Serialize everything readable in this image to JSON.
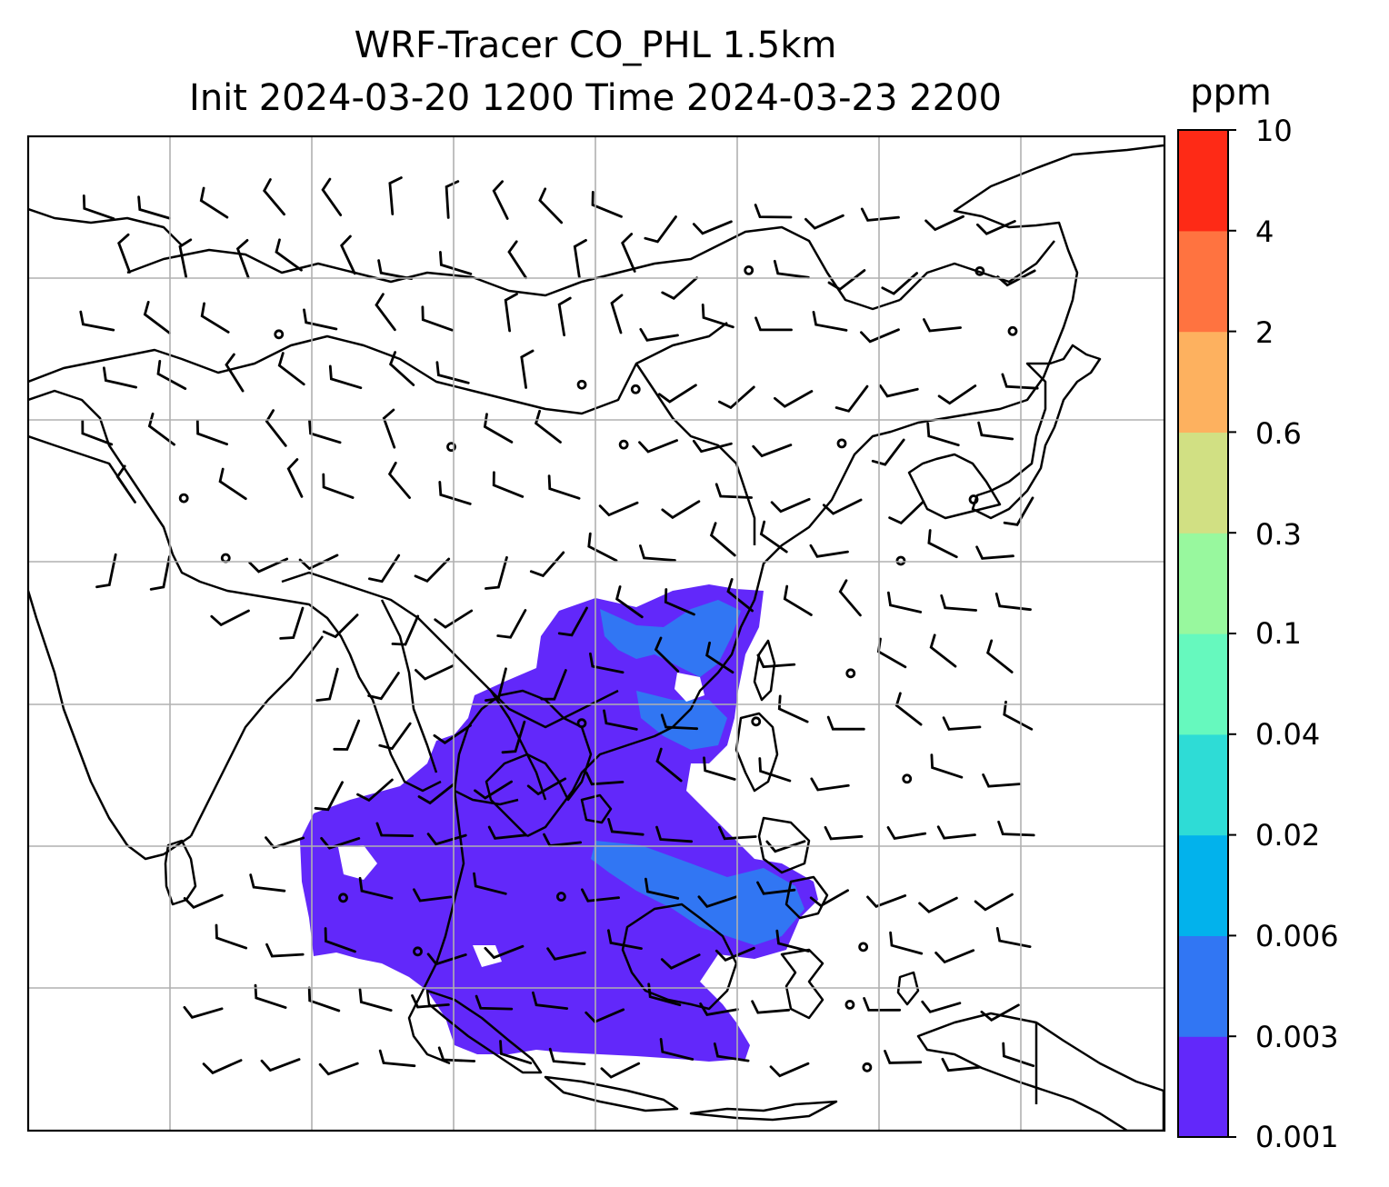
{
  "title": {
    "line1": "WRF-Tracer CO_PHL 1.5km",
    "line2": "Init 2024-03-20 1200 Time 2024-03-23 2200"
  },
  "colorbar": {
    "unit": "ppm",
    "levels": [
      "0.001",
      "0.003",
      "0.006",
      "0.02",
      "0.04",
      "0.1",
      "0.3",
      "0.6",
      "2",
      "4",
      "10"
    ],
    "colors": [
      "#6228fa",
      "#3176f3",
      "#02b2ec",
      "#2edcd6",
      "#66f9be",
      "#98f89e",
      "#d1e083",
      "#fdb15f",
      "#ff7340",
      "#fe2a16"
    ]
  },
  "map": {
    "coastline_color": "#000000",
    "grid_color": "#b0b0b0",
    "plume_fill_colors": [
      "#6228fa",
      "#3176f3"
    ]
  }
}
